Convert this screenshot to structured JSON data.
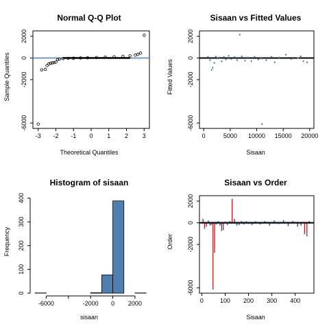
{
  "chart_data": [
    {
      "id": "qq",
      "type": "scatter",
      "title": "Normal Q-Q Plot",
      "xlabel": "Theoretical Quantiles",
      "ylabel": "Sample Quantiles",
      "xlim": [
        -3.3,
        3.3
      ],
      "ylim": [
        -6500,
        2500
      ],
      "xticks": [
        -3,
        -2,
        -1,
        0,
        1,
        2,
        3
      ],
      "yticks": [
        -6000,
        -2000,
        0,
        2000
      ],
      "ytick_labels": [
        "-6000",
        "-2000",
        "0",
        "2000"
      ],
      "grid": false,
      "reference_line_y": 0,
      "reference_line_color": "#4f7fb0",
      "points_x": [
        -3.0,
        -2.8,
        -2.6,
        -2.5,
        -2.4,
        -2.3,
        -2.2,
        -2.1,
        -2.0,
        -1.9,
        -1.8,
        -1.6,
        -1.3,
        -1.0,
        -0.6,
        -0.2,
        0.3,
        0.8,
        1.3,
        1.8,
        2.2,
        2.5,
        2.65,
        2.8,
        3.0
      ],
      "points_y": [
        -6100,
        -1100,
        -1050,
        -700,
        -550,
        -500,
        -450,
        -420,
        -380,
        -150,
        -100,
        -60,
        -40,
        -20,
        0,
        15,
        40,
        70,
        110,
        160,
        200,
        260,
        330,
        450,
        2100
      ]
    },
    {
      "id": "fitted",
      "type": "scatter",
      "title": "Sisaan vs Fitted Values",
      "xlabel": "Sisaan",
      "ylabel": "Fitted Values",
      "xlim": [
        -800,
        20800
      ],
      "ylim": [
        -6500,
        2500
      ],
      "xticks": [
        0,
        5000,
        10000,
        15000,
        20000
      ],
      "yticks": [
        -6000,
        -2000,
        0,
        2000
      ],
      "ytick_labels": [
        "-6000",
        "-2000",
        "0",
        "2000"
      ],
      "grid": false,
      "zero_line": true,
      "point_color": "#4f7fb0",
      "points_x": [
        800,
        1200,
        1500,
        1700,
        2000,
        2300,
        2600,
        3000,
        3400,
        3800,
        4200,
        4700,
        5200,
        5800,
        6300,
        6800,
        7200,
        7800,
        8300,
        9000,
        9600,
        10300,
        10800,
        11000,
        11800,
        12800,
        13400,
        14200,
        15500,
        16500,
        17800,
        18300,
        18800,
        19500
      ],
      "points_y": [
        100,
        -200,
        -1100,
        -900,
        -450,
        120,
        -50,
        50,
        -300,
        100,
        -150,
        200,
        -100,
        80,
        -200,
        2150,
        150,
        -250,
        50,
        -300,
        100,
        -150,
        -50,
        -6100,
        -200,
        100,
        -400,
        50,
        300,
        -100,
        0,
        150,
        -300,
        -400
      ]
    },
    {
      "id": "hist",
      "type": "bar",
      "title": "Histogram of sisaan",
      "xlabel": "sisaan",
      "ylabel": "Frequency",
      "xlim": [
        -7200,
        3300
      ],
      "ylim": [
        0,
        410
      ],
      "xticks": [
        -6000,
        -4000,
        -2000,
        0,
        2000
      ],
      "xtick_labels": [
        "-6000",
        "",
        "-2000",
        "0",
        "2000"
      ],
      "yticks": [
        0,
        100,
        200,
        300,
        400
      ],
      "bar_color": "#4f80b0",
      "bins": [
        {
          "x0": -7000,
          "x1": -6000,
          "count": 1
        },
        {
          "x0": -6000,
          "x1": -5000,
          "count": 0
        },
        {
          "x0": -5000,
          "x1": -4000,
          "count": 0
        },
        {
          "x0": -4000,
          "x1": -3000,
          "count": 0
        },
        {
          "x0": -3000,
          "x1": -2000,
          "count": 0
        },
        {
          "x0": -2000,
          "x1": -1000,
          "count": 2
        },
        {
          "x0": -1000,
          "x1": 0,
          "count": 77
        },
        {
          "x0": 0,
          "x1": 1000,
          "count": 388
        },
        {
          "x0": 1000,
          "x1": 2000,
          "count": 0
        },
        {
          "x0": 2000,
          "x1": 3000,
          "count": 1
        }
      ]
    },
    {
      "id": "order",
      "type": "line",
      "title": "Sisaan vs Order",
      "xlabel": "Sisaan",
      "ylabel": "Order",
      "xlim": [
        -10,
        480
      ],
      "ylim": [
        -6500,
        2500
      ],
      "xticks": [
        0,
        100,
        200,
        300,
        400
      ],
      "yticks": [
        -6000,
        -2000,
        0,
        2000
      ],
      "ytick_labels": [
        "-6000",
        "-2000",
        "0",
        "2000"
      ],
      "zero_line": true,
      "stem_color": "#cc0000",
      "point_color": "#4f7fb0",
      "spikes_x": [
        5,
        12,
        20,
        28,
        35,
        42,
        48,
        55,
        62,
        70,
        78,
        85,
        92,
        100,
        110,
        120,
        130,
        140,
        150,
        160,
        170,
        180,
        190,
        200,
        215,
        230,
        250,
        270,
        290,
        310,
        330,
        350,
        370,
        390,
        410,
        425,
        440,
        450,
        460
      ],
      "spikes_y": [
        300,
        -500,
        -300,
        150,
        -200,
        -150,
        -6100,
        -2700,
        -100,
        100,
        -200,
        -700,
        -600,
        50,
        -150,
        100,
        2150,
        300,
        -200,
        -150,
        100,
        -100,
        80,
        -50,
        -150,
        80,
        -100,
        100,
        -200,
        150,
        -50,
        200,
        -250,
        100,
        -300,
        -200,
        -1000,
        -1200,
        100
      ]
    }
  ]
}
